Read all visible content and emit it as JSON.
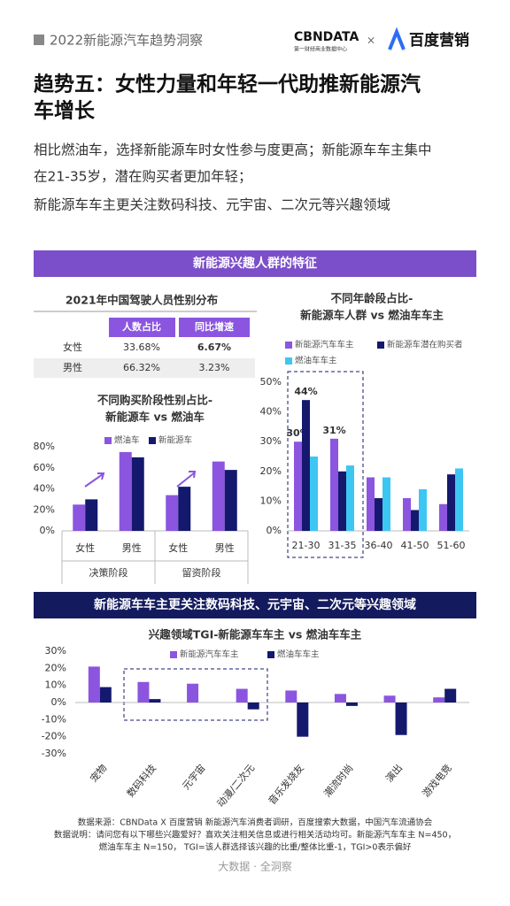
{
  "header": {
    "report": "2022新能源汽车趋势洞察",
    "logo1": "CBNDATA",
    "logo1_sub": "第一财经商业数据中心",
    "times": "×",
    "logo2": "百度营销"
  },
  "title": [
    "趋势五：女性力量和年轻一代助推新能源汽",
    "车增长"
  ],
  "body": [
    "相比燃油车，选择新能源车时女性参与度更高；新能源车车主集中",
    "在21-35岁，潜在购买者更加年轻；",
    "新能源车车主更关注数码科技、元宇宙、二次元等兴趣领域"
  ],
  "section1": "新能源兴趣人群的特征",
  "table": {
    "title": "2021年中国驾驶人员性别分布",
    "header": [
      "人数占比",
      "同比增速"
    ],
    "rows": [
      [
        "女性",
        "33.68%",
        "6.67%"
      ],
      [
        "男性",
        "66.32%",
        "3.23%"
      ]
    ]
  },
  "section2": "新能源车车主更关注数码科技、元宇宙、二次元等兴趣领域",
  "chart_data": [
    {
      "type": "bar",
      "title": [
        "不同购买阶段性别占比-",
        "新能源车 vs 燃油车"
      ],
      "categories": [
        "女性",
        "男性",
        "女性",
        "男性"
      ],
      "groups": [
        "决策阶段",
        "留资阶段"
      ],
      "series": [
        {
          "name": "燃油车",
          "color": "#8b55e0",
          "values": [
            25,
            75,
            34,
            66
          ]
        },
        {
          "name": "新能源车",
          "color": "#14196e",
          "values": [
            30,
            70,
            42,
            58
          ]
        }
      ],
      "ylim": [
        0,
        80
      ],
      "yticks": [
        {
          "value": 0,
          "label": "0%"
        },
        {
          "value": 20,
          "label": "20%"
        },
        {
          "value": 40,
          "label": "40%"
        },
        {
          "value": 60,
          "label": "60%"
        },
        {
          "value": 80,
          "label": "80%"
        }
      ],
      "grid": false
    },
    {
      "type": "bar",
      "title": [
        "不同年龄段占比-",
        "新能源车人群 vs 燃油车车主"
      ],
      "categories": [
        "21-30",
        "31-35",
        "36-40",
        "41-50",
        "51-60"
      ],
      "series": [
        {
          "name": "新能源汽车车主",
          "color": "#8b55e0",
          "values": [
            30,
            31,
            18,
            11,
            9
          ],
          "value_labels": [
            "30%",
            "31%",
            null,
            null,
            null
          ]
        },
        {
          "name": "新能源车潜在购买者",
          "color": "#14196e",
          "values": [
            44,
            20,
            11,
            7,
            19
          ],
          "value_labels": [
            "44%",
            null,
            null,
            null,
            null
          ]
        },
        {
          "name": "燃油车车主",
          "color": "#3ec6f2",
          "values": [
            25,
            22,
            18,
            14,
            21
          ]
        }
      ],
      "ylim": [
        0,
        50
      ],
      "yticks": [
        {
          "value": 0,
          "label": "0%"
        },
        {
          "value": 10,
          "label": "10%"
        },
        {
          "value": 20,
          "label": "20%"
        },
        {
          "value": 30,
          "label": "30%"
        },
        {
          "value": 40,
          "label": "40%"
        },
        {
          "value": 50,
          "label": "50%"
        }
      ],
      "grid": false
    },
    {
      "type": "bar",
      "title": [
        "兴趣领域TGI-新能源车车主 vs 燃油车车主"
      ],
      "categories": [
        "宠物",
        "数码科技",
        "元宇宙",
        "动漫/二次元",
        "音乐发烧友",
        "潮流时尚",
        "演出",
        "游戏电竞"
      ],
      "series": [
        {
          "name": "新能源汽车车主",
          "color": "#8b55e0",
          "values": [
            21,
            12,
            11,
            8,
            7,
            5,
            4,
            3
          ]
        },
        {
          "name": "燃油车车主",
          "color": "#14196e",
          "values": [
            9,
            2,
            0,
            -4,
            -20,
            -2,
            -19,
            8
          ]
        }
      ],
      "ylim": [
        -30,
        30
      ],
      "yticks": [
        {
          "value": -30,
          "label": "-30%"
        },
        {
          "value": -20,
          "label": "-20%"
        },
        {
          "value": -10,
          "label": "-10%"
        },
        {
          "value": 0,
          "label": "0%"
        },
        {
          "value": 10,
          "label": "10%"
        },
        {
          "value": 20,
          "label": "20%"
        },
        {
          "value": 30,
          "label": "30%"
        }
      ],
      "grid": false
    }
  ],
  "footer": [
    "数据来源：CBNData X 百度营销 新能源汽车消费者调研，百度搜索大数据，中国汽车流通协会",
    "数据说明：请问您有以下哪些兴趣爱好？喜欢关注相关信息或进行相关活动均可。新能源汽车车主 N=450，",
    "燃油车车主 N=150， TGI=该人群选择该兴趣的比重/整体比重-1，TGI>0表示偏好"
  ],
  "tagline": "大数据 · 全洞察"
}
